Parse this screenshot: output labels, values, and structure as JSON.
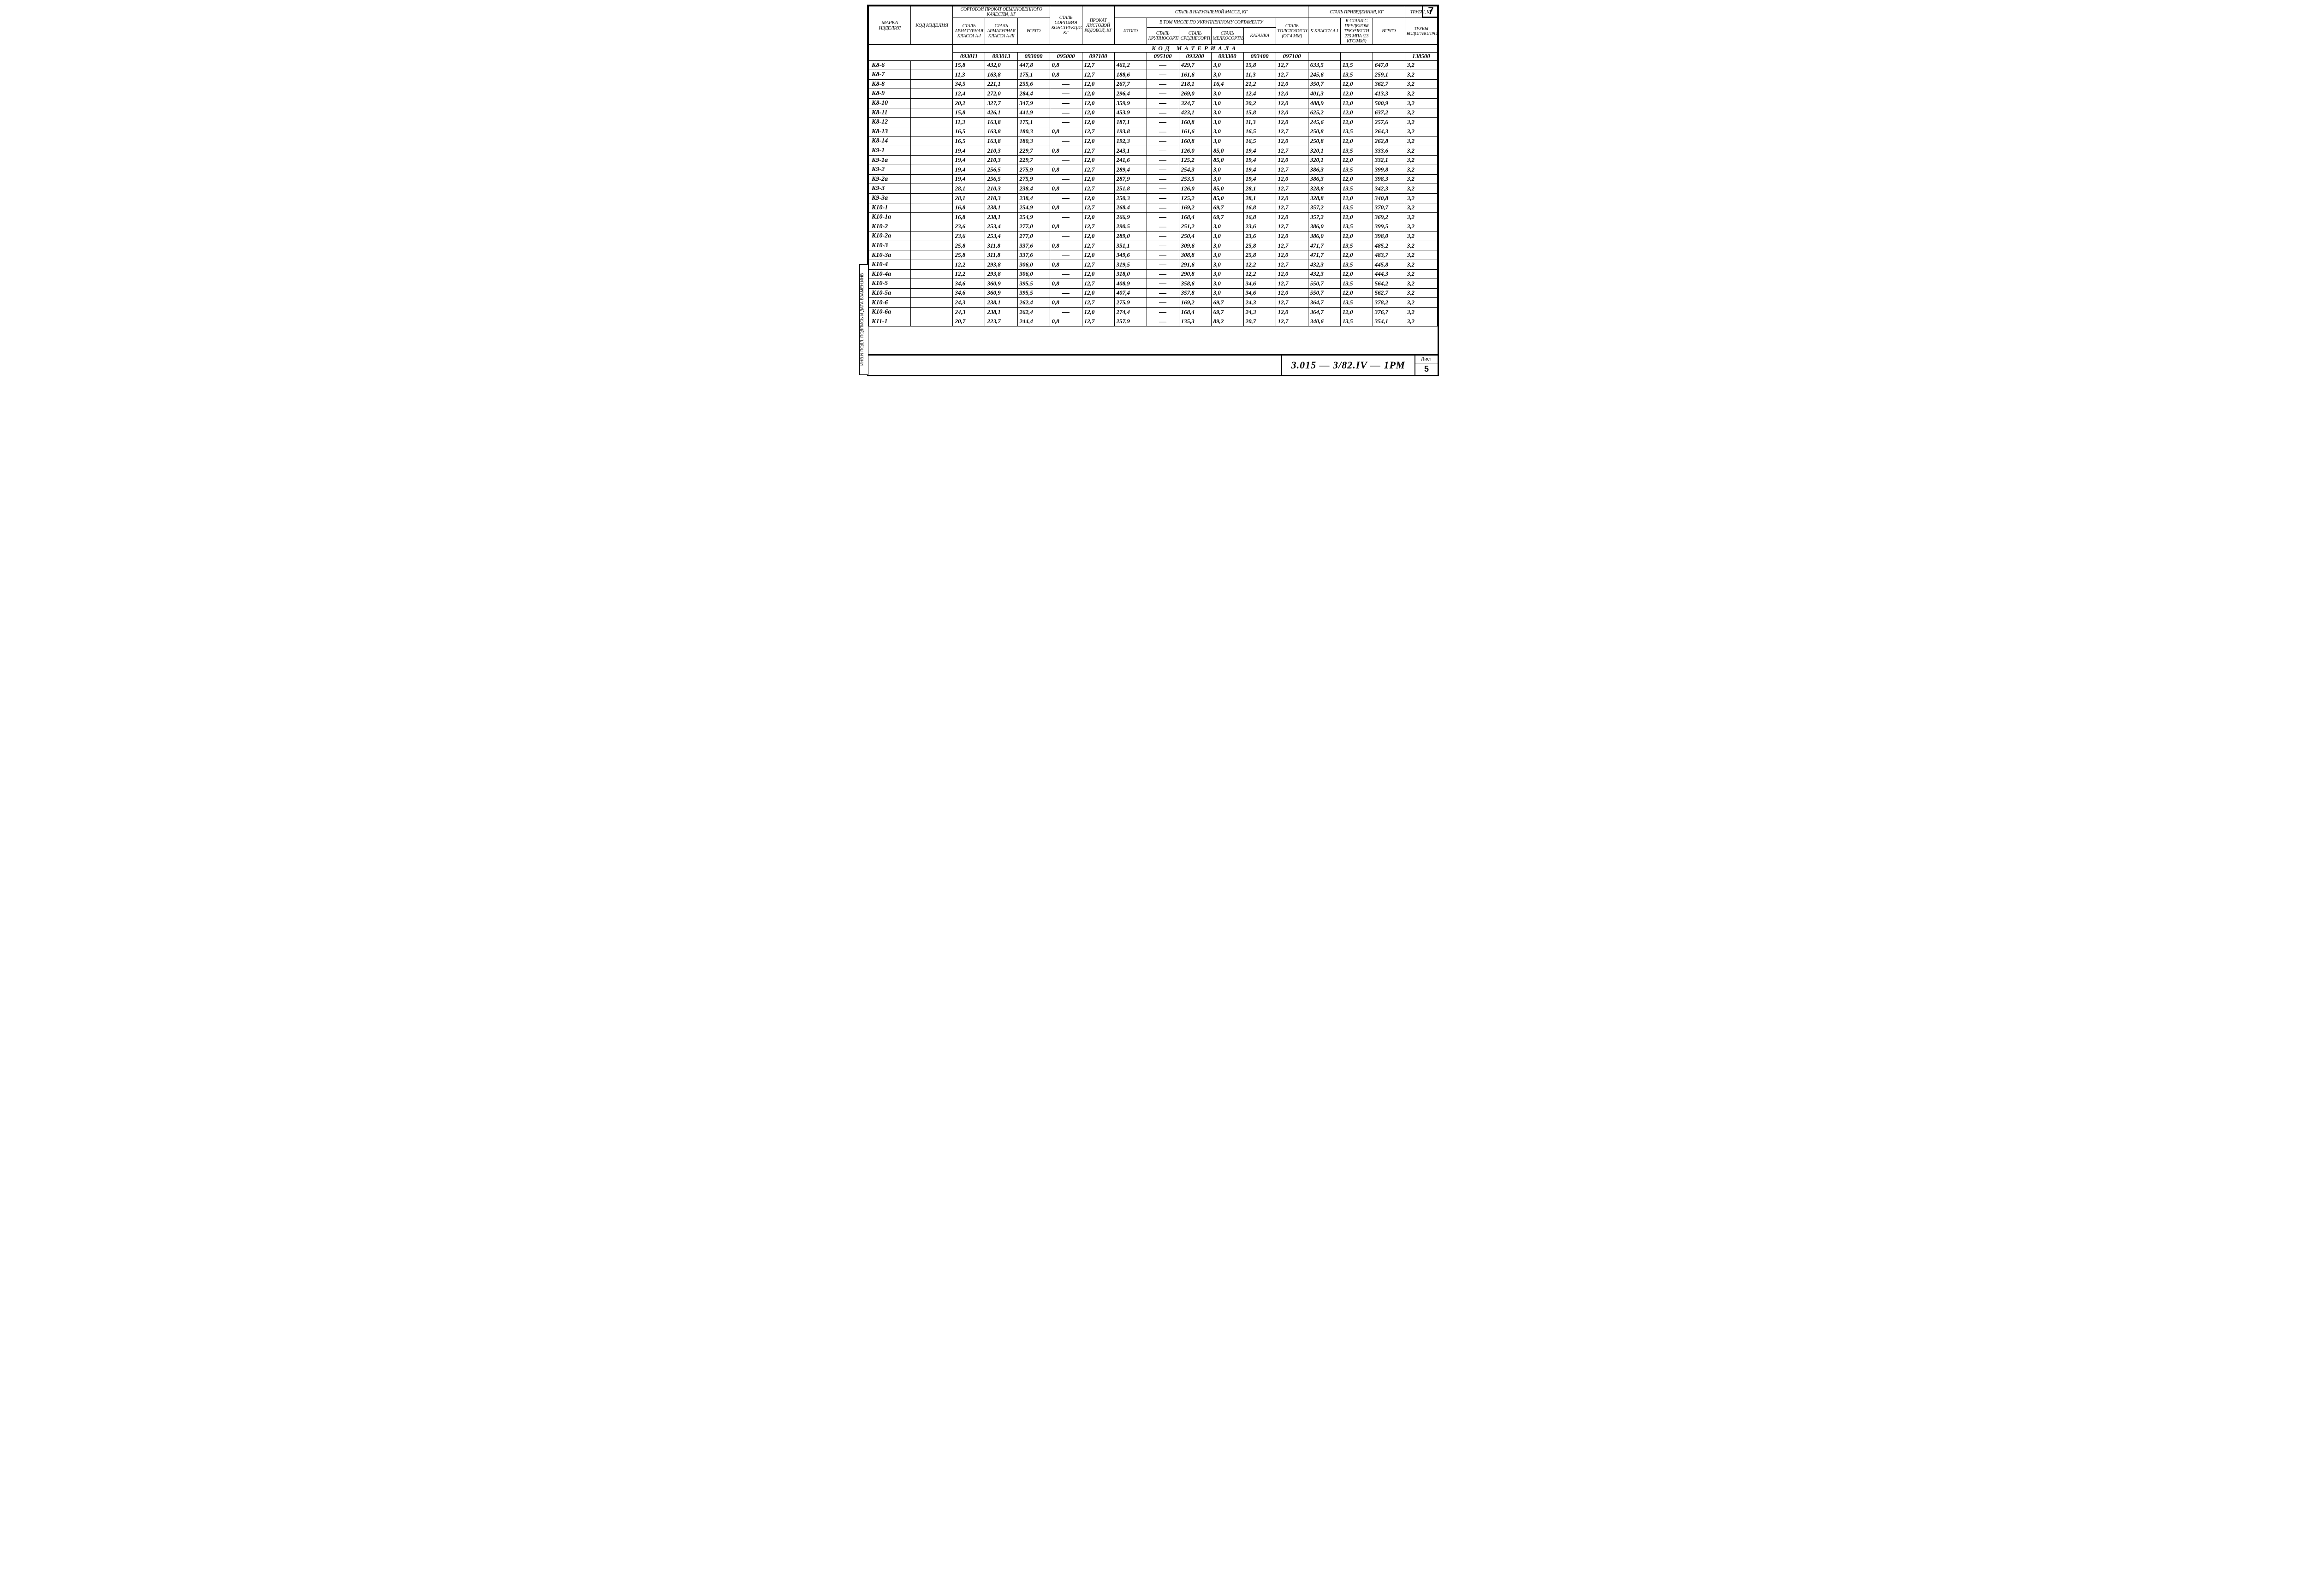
{
  "page_number": "7",
  "side_label": "ИНВ.N ПОДЛ. ПОДПИСЬ И ДАТА ВЗАМЕН.ИНВ",
  "drawing_number": "3.015 — 3/82.IV — 1РМ",
  "sheet_label_top": "Лист",
  "sheet_label_num": "5",
  "headers": {
    "marka": "Марка изделия",
    "kod": "Код изделия",
    "sortovoy_group": "Сортовой прокат обыкновенного качества, кг",
    "sortovoy_a1": "Сталь арматурная класса А-I",
    "sortovoy_a3": "Сталь арматурная класса А-III",
    "sortovoy_vsego": "Всего",
    "stal_sort_konstr": "Сталь сортовая конструкционная, кг",
    "prokat_list": "Прокат листовой рядовой, кг",
    "stal_nat_group": "Сталь в натуральной массе, кг",
    "vtom_group": "В том числе по укрупненному сортаменту",
    "itogo": "Итого",
    "krupno": "Сталь крупносортная",
    "sredne": "Сталь среднесортная",
    "melko": "Сталь мелкосортная",
    "katanka": "Катанка",
    "tolsto": "Сталь толстолистовая (от 4 мм)",
    "stal_priv_group": "Сталь приведенная, кг",
    "k_klassu": "К классу А-I",
    "k_predelu": "К стали с пределом текучести 225 МПа (23 кгс/мм²)",
    "priv_vsego": "Всего",
    "truby_group": "Трубы, кг",
    "truby_vgp": "Трубы водогазопроводные"
  },
  "code_banner": "КОД   МАТЕРИАЛА",
  "codes": [
    "093011",
    "093013",
    "093000",
    "095000",
    "097100",
    "",
    "095100",
    "093200",
    "093300",
    "093400",
    "097100",
    "",
    "",
    "",
    "138500"
  ],
  "rows": [
    {
      "id": "К8-6",
      "v": [
        "15,8",
        "432,0",
        "447,8",
        "0,8",
        "12,7",
        "461,2",
        "—",
        "429,7",
        "3,0",
        "15,8",
        "12,7",
        "633,5",
        "13,5",
        "647,0",
        "3,2"
      ]
    },
    {
      "id": "К8-7",
      "v": [
        "11,3",
        "163,8",
        "175,1",
        "0,8",
        "12,7",
        "188,6",
        "—",
        "161,6",
        "3,0",
        "11,3",
        "12,7",
        "245,6",
        "13,5",
        "259,1",
        "3,2"
      ]
    },
    {
      "id": "К8-8",
      "v": [
        "34,5",
        "221,1",
        "255,6",
        "—",
        "12,0",
        "267,7",
        "—",
        "218,1",
        "16,4",
        "21,2",
        "12,0",
        "350,7",
        "12,0",
        "362,7",
        "3,2"
      ]
    },
    {
      "id": "К8-9",
      "v": [
        "12,4",
        "272,0",
        "284,4",
        "—",
        "12,0",
        "296,4",
        "—",
        "269,0",
        "3,0",
        "12,4",
        "12,0",
        "401,3",
        "12,0",
        "413,3",
        "3,2"
      ]
    },
    {
      "id": "К8-10",
      "v": [
        "20,2",
        "327,7",
        "347,9",
        "—",
        "12,0",
        "359,9",
        "—",
        "324,7",
        "3,0",
        "20,2",
        "12,0",
        "488,9",
        "12,0",
        "500,9",
        "3,2"
      ]
    },
    {
      "id": "К8-11",
      "v": [
        "15,8",
        "426,1",
        "441,9",
        "—",
        "12,0",
        "453,9",
        "—",
        "423,1",
        "3,0",
        "15,8",
        "12,0",
        "625,2",
        "12,0",
        "637,2",
        "3,2"
      ]
    },
    {
      "id": "К8-12",
      "v": [
        "11,3",
        "163,8",
        "175,1",
        "—",
        "12,0",
        "187,1",
        "—",
        "160,8",
        "3,0",
        "11,3",
        "12,0",
        "245,6",
        "12,0",
        "257,6",
        "3,2"
      ]
    },
    {
      "id": "К8-13",
      "v": [
        "16,5",
        "163,8",
        "180,3",
        "0,8",
        "12,7",
        "193,8",
        "—",
        "161,6",
        "3,0",
        "16,5",
        "12,7",
        "250,8",
        "13,5",
        "264,3",
        "3,2"
      ]
    },
    {
      "id": "К8-14",
      "v": [
        "16,5",
        "163,8",
        "180,3",
        "—",
        "12,0",
        "192,3",
        "—",
        "160,8",
        "3,0",
        "16,5",
        "12,0",
        "250,8",
        "12,0",
        "262,8",
        "3,2"
      ]
    },
    {
      "id": "К9-1",
      "v": [
        "19,4",
        "210,3",
        "229,7",
        "0,8",
        "12,7",
        "243,1",
        "—",
        "126,0",
        "85,0",
        "19,4",
        "12,7",
        "320,1",
        "13,5",
        "333,6",
        "3,2"
      ]
    },
    {
      "id": "К9-1а",
      "v": [
        "19,4",
        "210,3",
        "229,7",
        "—",
        "12,0",
        "241,6",
        "—",
        "125,2",
        "85,0",
        "19,4",
        "12,0",
        "320,1",
        "12,0",
        "332,1",
        "3,2"
      ]
    },
    {
      "id": "К9-2",
      "v": [
        "19,4",
        "256,5",
        "275,9",
        "0,8",
        "12,7",
        "289,4",
        "—",
        "254,3",
        "3,0",
        "19,4",
        "12,7",
        "386,3",
        "13,5",
        "399,8",
        "3,2"
      ]
    },
    {
      "id": "К9-2а",
      "v": [
        "19,4",
        "256,5",
        "275,9",
        "—",
        "12,0",
        "287,9",
        "—",
        "253,5",
        "3,0",
        "19,4",
        "12,0",
        "386,3",
        "12,0",
        "398,3",
        "3,2"
      ]
    },
    {
      "id": "К9-3",
      "v": [
        "28,1",
        "210,3",
        "238,4",
        "0,8",
        "12,7",
        "251,8",
        "—",
        "126,0",
        "85,0",
        "28,1",
        "12,7",
        "328,8",
        "13,5",
        "342,3",
        "3,2"
      ]
    },
    {
      "id": "К9-3а",
      "v": [
        "28,1",
        "210,3",
        "238,4",
        "—",
        "12,0",
        "250,3",
        "—",
        "125,2",
        "85,0",
        "28,1",
        "12,0",
        "328,8",
        "12,0",
        "340,8",
        "3,2"
      ]
    },
    {
      "id": "К10-1",
      "v": [
        "16,8",
        "238,1",
        "254,9",
        "0,8",
        "12,7",
        "268,4",
        "—",
        "169,2",
        "69,7",
        "16,8",
        "12,7",
        "357,2",
        "13,5",
        "370,7",
        "3,2"
      ]
    },
    {
      "id": "К10-1а",
      "v": [
        "16,8",
        "238,1",
        "254,9",
        "—",
        "12,0",
        "266,9",
        "—",
        "168,4",
        "69,7",
        "16,8",
        "12,0",
        "357,2",
        "12,0",
        "369,2",
        "3,2"
      ]
    },
    {
      "id": "К10-2",
      "v": [
        "23,6",
        "253,4",
        "277,0",
        "0,8",
        "12,7",
        "290,5",
        "—",
        "251,2",
        "3,0",
        "23,6",
        "12,7",
        "386,0",
        "13,5",
        "399,5",
        "3,2"
      ]
    },
    {
      "id": "К10-2а",
      "v": [
        "23,6",
        "253,4",
        "277,0",
        "—",
        "12,0",
        "289,0",
        "—",
        "250,4",
        "3,0",
        "23,6",
        "12,0",
        "386,0",
        "12,0",
        "398,0",
        "3,2"
      ]
    },
    {
      "id": "К10-3",
      "v": [
        "25,8",
        "311,8",
        "337,6",
        "0,8",
        "12,7",
        "351,1",
        "—",
        "309,6",
        "3,0",
        "25,8",
        "12,7",
        "471,7",
        "13,5",
        "485,2",
        "3,2"
      ]
    },
    {
      "id": "К10-3а",
      "v": [
        "25,8",
        "311,8",
        "337,6",
        "—",
        "12,0",
        "349,6",
        "—",
        "308,8",
        "3,0",
        "25,8",
        "12,0",
        "471,7",
        "12,0",
        "483,7",
        "3,2"
      ]
    },
    {
      "id": "К10-4",
      "v": [
        "12,2",
        "293,8",
        "306,0",
        "0,8",
        "12,7",
        "319,5",
        "—",
        "291,6",
        "3,0",
        "12,2",
        "12,7",
        "432,3",
        "13,5",
        "445,8",
        "3,2"
      ]
    },
    {
      "id": "К10-4а",
      "v": [
        "12,2",
        "293,8",
        "306,0",
        "—",
        "12,0",
        "318,0",
        "—",
        "290,8",
        "3,0",
        "12,2",
        "12,0",
        "432,3",
        "12,0",
        "444,3",
        "3,2"
      ]
    },
    {
      "id": "К10-5",
      "v": [
        "34,6",
        "360,9",
        "395,5",
        "0,8",
        "12,7",
        "408,9",
        "—",
        "358,6",
        "3,0",
        "34,6",
        "12,7",
        "550,7",
        "13,5",
        "564,2",
        "3,2"
      ]
    },
    {
      "id": "К10-5а",
      "v": [
        "34,6",
        "360,9",
        "395,5",
        "—",
        "12,0",
        "407,4",
        "—",
        "357,8",
        "3,0",
        "34,6",
        "12,0",
        "550,7",
        "12,0",
        "562,7",
        "3,2"
      ]
    },
    {
      "id": "К10-6",
      "v": [
        "24,3",
        "238,1",
        "262,4",
        "0,8",
        "12,7",
        "275,9",
        "—",
        "169,2",
        "69,7",
        "24,3",
        "12,7",
        "364,7",
        "13,5",
        "378,2",
        "3,2"
      ]
    },
    {
      "id": "К10-6а",
      "v": [
        "24,3",
        "238,1",
        "262,4",
        "—",
        "12,0",
        "274,4",
        "—",
        "168,4",
        "69,7",
        "24,3",
        "12,0",
        "364,7",
        "12,0",
        "376,7",
        "3,2"
      ]
    },
    {
      "id": "К11-1",
      "v": [
        "20,7",
        "223,7",
        "244,4",
        "0,8",
        "12,7",
        "257,9",
        "—",
        "135,3",
        "89,2",
        "20,7",
        "12,7",
        "340,6",
        "13,5",
        "354,1",
        "3,2"
      ]
    }
  ]
}
